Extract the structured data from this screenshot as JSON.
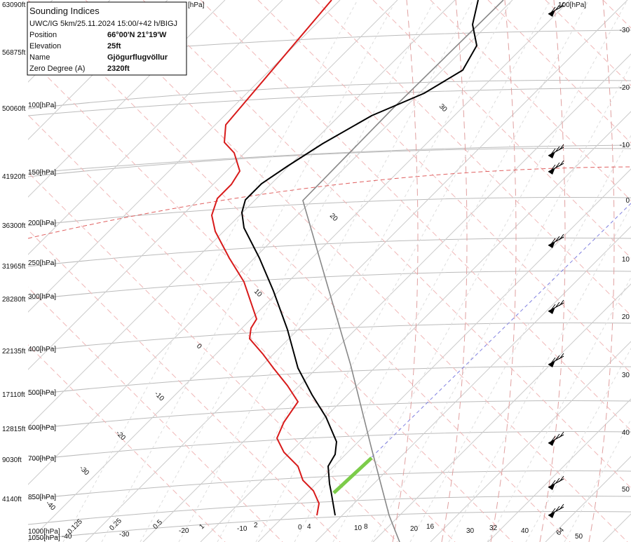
{
  "info": {
    "title": "Sounding Indices",
    "subtitle": "UWC/IG 5km/25.11.2024 15:00/+42 h/BIGJ",
    "rows": [
      [
        "Position",
        "66°00'N 21°19'W"
      ],
      [
        "Elevation",
        "25ft"
      ],
      [
        "Name",
        "Gjögurflugvöllur"
      ],
      [
        "Zero Degree (A)",
        "2320ft"
      ]
    ]
  },
  "altitudes": [
    "63090ft",
    "56875ft",
    "50060ft",
    "41920ft",
    "36300ft",
    "31965ft",
    "28280ft",
    "22135ft",
    "17110ft",
    "12815ft",
    "9030ft",
    "4140ft"
  ],
  "pressures": [
    "100[hPa]",
    "150[hPa]",
    "200[hPa]",
    "250[hPa]",
    "300[hPa]",
    "400[hPa]",
    "500[hPa]",
    "600[hPa]",
    "700[hPa]",
    "850[hPa]",
    "1000[hPa]",
    "1050[hPa]"
  ],
  "top_labels": [
    "[hPa]",
    "100[hPa]"
  ],
  "right_labels": [
    "-30",
    "-20",
    "-10",
    "0",
    "10",
    "20",
    "30",
    "40",
    "50"
  ],
  "isotherm_labels": [
    "30",
    "20",
    "10",
    "0",
    "-10",
    "-20",
    "-30",
    "-40"
  ],
  "bottom_labels": [
    "0.125",
    "-40",
    "-30",
    "0.25",
    "0.5",
    "-20",
    "1",
    "-10",
    "2",
    "0",
    "4",
    "10",
    "8",
    "20",
    "16",
    "30",
    "32",
    "40",
    "64",
    "50"
  ]
}
